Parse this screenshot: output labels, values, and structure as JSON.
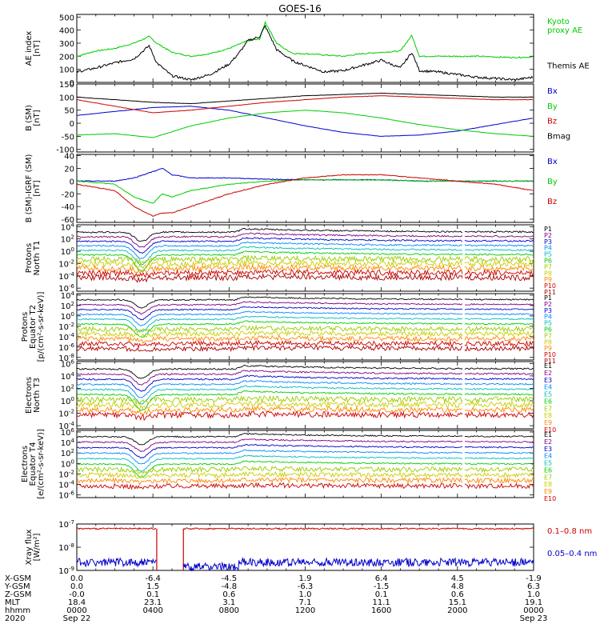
{
  "chart_data": {
    "type": "line",
    "title": "GOES-16",
    "panels": [
      {
        "id": "ae",
        "ylabel": [
          "AE index",
          "[nT]"
        ],
        "yticks": [
          "500",
          "400",
          "300",
          "200",
          "100",
          "0"
        ],
        "ylim": [
          0,
          520
        ],
        "series": [
          {
            "name": "Kyoto proxy AE",
            "name_lines": [
              "Kyoto",
              "proxy AE"
            ],
            "color": "#00cc00",
            "x": [
              0,
              1,
              2,
              3,
              3.8,
              4.2,
              5,
              6,
              7,
              8,
              9,
              9.6,
              9.9,
              10.5,
              11,
              11.4,
              12,
              13,
              14,
              15,
              16,
              17,
              17.6,
              18,
              19,
              20,
              21,
              22,
              23,
              24
            ],
            "y": [
              200,
              240,
              260,
              300,
              350,
              300,
              230,
              200,
              220,
              260,
              320,
              330,
              460,
              300,
              250,
              220,
              220,
              210,
              200,
              220,
              230,
              240,
              360,
              200,
              200,
              200,
              200,
              195,
              190,
              195
            ]
          },
          {
            "name": "Themis AE",
            "name_lines": [
              "Themis AE"
            ],
            "color": "#000000",
            "x": [
              0,
              1,
              2,
              3,
              3.8,
              4.2,
              5,
              6,
              7,
              8,
              8.5,
              9,
              9.6,
              9.9,
              10.5,
              11,
              11.4,
              12,
              13,
              14,
              15,
              16,
              17,
              17.6,
              18,
              19,
              20,
              21,
              22,
              23,
              24
            ],
            "y": [
              80,
              110,
              150,
              180,
              280,
              150,
              50,
              20,
              60,
              140,
              220,
              320,
              350,
              430,
              250,
              200,
              160,
              130,
              80,
              90,
              130,
              170,
              110,
              230,
              90,
              80,
              60,
              40,
              30,
              20,
              40
            ]
          }
        ]
      },
      {
        "id": "bsm",
        "ylabel": [
          "B (SM)",
          "[nT]"
        ],
        "yticks": [
          "150",
          "100",
          "50",
          "0",
          "-50",
          "-100"
        ],
        "ylim": [
          -110,
          150
        ],
        "series": [
          {
            "name": "Bx",
            "name_lines": [
              "Bx"
            ],
            "color": "#0000cc",
            "x": [
              0,
              2,
              4,
              6,
              8,
              10,
              12,
              14,
              16,
              18,
              20,
              22,
              24
            ],
            "y": [
              30,
              45,
              60,
              65,
              50,
              20,
              -10,
              -35,
              -50,
              -45,
              -30,
              -5,
              20
            ]
          },
          {
            "name": "By",
            "name_lines": [
              "By"
            ],
            "color": "#00cc00",
            "x": [
              0,
              2,
              4,
              6,
              8,
              10,
              12,
              14,
              16,
              18,
              20,
              22,
              24
            ],
            "y": [
              -45,
              -40,
              -55,
              -10,
              20,
              40,
              50,
              40,
              20,
              -5,
              -25,
              -40,
              -50
            ]
          },
          {
            "name": "Bz",
            "name_lines": [
              "Bz"
            ],
            "color": "#cc0000",
            "x": [
              0,
              2,
              4,
              6,
              8,
              10,
              12,
              14,
              16,
              18,
              20,
              22,
              24
            ],
            "y": [
              90,
              65,
              40,
              50,
              65,
              80,
              90,
              100,
              105,
              100,
              95,
              90,
              90
            ]
          },
          {
            "name": "Bmag",
            "name_lines": [
              "Bmag"
            ],
            "color": "#000000",
            "x": [
              0,
              2,
              4,
              6,
              8,
              10,
              12,
              14,
              16,
              18,
              20,
              22,
              24
            ],
            "y": [
              100,
              90,
              80,
              75,
              85,
              95,
              105,
              110,
              115,
              110,
              105,
              100,
              100
            ]
          }
        ]
      },
      {
        "id": "bsmigrf",
        "ylabel": [
          "B (SM)-IGRF (SM)",
          "[nT]"
        ],
        "yticks": [
          "40",
          "20",
          "0",
          "-20",
          "-40",
          "-60"
        ],
        "ylim": [
          -65,
          42
        ],
        "series": [
          {
            "name": "Bx",
            "name_lines": [
              "Bx"
            ],
            "color": "#0000cc",
            "x": [
              0,
              2,
              3,
              4,
              4.5,
              5,
              6,
              8,
              10,
              12,
              14,
              16,
              18,
              20,
              22,
              24
            ],
            "y": [
              0,
              0,
              5,
              15,
              20,
              10,
              5,
              5,
              3,
              2,
              2,
              2,
              0,
              0,
              0,
              0
            ]
          },
          {
            "name": "By",
            "name_lines": [
              "By"
            ],
            "color": "#00cc00",
            "x": [
              0,
              2,
              3,
              4,
              4.5,
              5,
              6,
              8,
              10,
              12,
              14,
              16,
              18,
              20,
              22,
              24
            ],
            "y": [
              0,
              -5,
              -25,
              -35,
              -20,
              -25,
              -15,
              -5,
              0,
              2,
              2,
              2,
              0,
              0,
              0,
              0
            ]
          },
          {
            "name": "Bz",
            "name_lines": [
              "Bz"
            ],
            "color": "#cc0000",
            "x": [
              0,
              2,
              3,
              4,
              4.5,
              5,
              6,
              8,
              10,
              12,
              14,
              16,
              18,
              20,
              22,
              24
            ],
            "y": [
              -5,
              -15,
              -40,
              -55,
              -50,
              -50,
              -40,
              -20,
              -5,
              5,
              10,
              10,
              5,
              0,
              -5,
              -15
            ]
          }
        ]
      },
      {
        "id": "protons_t1",
        "ylabel": [
          "Protons",
          "North T1"
        ],
        "yticks": [
          "10^4",
          "10^2",
          "10^0",
          "10^-2",
          "10^-4",
          "10^-6"
        ],
        "log": true,
        "ylim": [
          -6.5,
          4.3
        ],
        "channels": [
          "P1",
          "P2",
          "P3",
          "P4",
          "P5",
          "P6",
          "P7",
          "P8",
          "P9",
          "P10",
          "P11"
        ],
        "channel_colors": [
          "#000000",
          "#800080",
          "#0000cc",
          "#0088ff",
          "#00bbbb",
          "#00cc00",
          "#99cc00",
          "#cccc00",
          "#ff8800",
          "#cc0000",
          "#aa0000"
        ]
      },
      {
        "id": "protons_t2",
        "ylabel": [
          "Protons",
          "Equator T2",
          "[p/(cm²-s-sr-keV)]"
        ],
        "yticks": [
          "10^4",
          "10^2",
          "10^0",
          "10^-2",
          "10^-4",
          "10^-6",
          "10^-8"
        ],
        "log": true,
        "ylim": [
          -8.5,
          4.3
        ],
        "channels": [
          "P1",
          "P2",
          "P3",
          "P4",
          "P5",
          "P6",
          "P7",
          "P8",
          "P9",
          "P10",
          "P11"
        ],
        "channel_colors": [
          "#000000",
          "#800080",
          "#0000cc",
          "#0088ff",
          "#00bbbb",
          "#00cc00",
          "#99cc00",
          "#cccc00",
          "#ff8800",
          "#cc0000",
          "#aa0000"
        ]
      },
      {
        "id": "electrons_t3",
        "ylabel": [
          "Electrons",
          "North T3"
        ],
        "yticks": [
          "10^6",
          "10^4",
          "10^2",
          "10^0",
          "10^-2",
          "10^-4"
        ],
        "log": true,
        "ylim": [
          -4.5,
          6.3
        ],
        "channels": [
          "E1",
          "E2",
          "E3",
          "E4",
          "E5",
          "E6",
          "E7",
          "E8",
          "E9",
          "E10"
        ],
        "channel_colors": [
          "#000000",
          "#800080",
          "#0000cc",
          "#0088ff",
          "#00bbbb",
          "#00cc00",
          "#99cc00",
          "#cccc00",
          "#ff8800",
          "#cc0000"
        ]
      },
      {
        "id": "electrons_t4",
        "ylabel": [
          "Electrons",
          "Equator T4",
          "[e/(cm²-s-sr-keV)]"
        ],
        "yticks": [
          "10^6",
          "10^4",
          "10^2",
          "10^0",
          "10^-2",
          "10^-4",
          "10^-6"
        ],
        "log": true,
        "ylim": [
          -6.5,
          6.3
        ],
        "channels": [
          "E1",
          "E2",
          "E3",
          "E4",
          "E5",
          "E6",
          "E7",
          "E8",
          "E9",
          "E10"
        ],
        "channel_colors": [
          "#000000",
          "#800080",
          "#0000cc",
          "#0088ff",
          "#00bbbb",
          "#00cc00",
          "#99cc00",
          "#cccc00",
          "#ff8800",
          "#cc0000"
        ]
      },
      {
        "id": "xray",
        "ylabel": [
          "Xray flux",
          "[W/m²]"
        ],
        "yticks": [
          "10^-7",
          "10^-8",
          "10^-9"
        ],
        "log": true,
        "ylim": [
          -9,
          -7
        ],
        "series": [
          {
            "name": "0.1-0.8 nm",
            "name_lines": [
              "0.1–0.8 nm"
            ],
            "color": "#cc0000",
            "level": -7.2
          },
          {
            "name": "0.05-0.4 nm",
            "name_lines": [
              "0.05–0.4 nm"
            ],
            "color": "#0000cc",
            "level": -8.65
          }
        ],
        "gap_hours": [
          4.2,
          5.6
        ]
      }
    ],
    "x_axis": {
      "unit": "hours",
      "range": [
        0,
        24
      ],
      "row_labels": [
        "X-GSM",
        "Y-GSM",
        "Z-GSM",
        "MLT",
        "hhmm",
        "2020"
      ],
      "ticks": [
        {
          "t": 0,
          "values": [
            "0.0",
            "0.0",
            "-0.0",
            "18.4",
            "0000",
            "Sep 22"
          ]
        },
        {
          "t": 4,
          "values": [
            "-6.4",
            "1.5",
            "0.1",
            "23.1",
            "0400",
            ""
          ]
        },
        {
          "t": 8,
          "values": [
            "-4.5",
            "-4.8",
            "0.6",
            "3.1",
            "0800",
            ""
          ]
        },
        {
          "t": 12,
          "values": [
            "1.9",
            "-6.3",
            "1.0",
            "7.1",
            "1200",
            ""
          ]
        },
        {
          "t": 16,
          "values": [
            "6.4",
            "-1.5",
            "0.1",
            "11.1",
            "1600",
            ""
          ]
        },
        {
          "t": 20,
          "values": [
            "4.5",
            "4.8",
            "0.6",
            "15.1",
            "2000",
            ""
          ]
        },
        {
          "t": 24,
          "values": [
            "-1.9",
            "6.3",
            "1.0",
            "19.1",
            "0000",
            "Sep 23"
          ]
        }
      ]
    }
  }
}
